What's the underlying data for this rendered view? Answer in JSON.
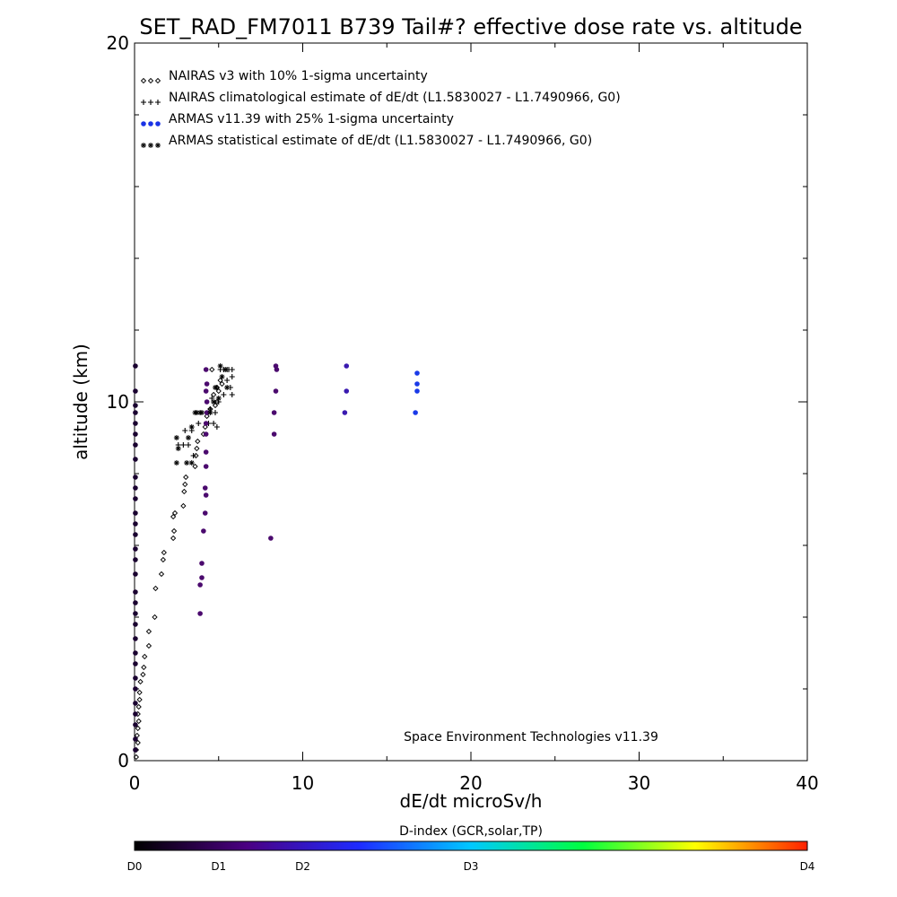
{
  "chart_data": {
    "type": "scatter",
    "title": "SET_RAD_FM7011  B739 Tail#? effective dose rate vs. altitude",
    "xlabel": "dE/dt microSv/h",
    "ylabel": "altitude (km)",
    "xlim": [
      0,
      40
    ],
    "ylim": [
      0,
      20
    ],
    "x_ticks": [
      0,
      10,
      20,
      30,
      40
    ],
    "y_ticks": [
      0,
      10,
      20
    ],
    "x_tick_labels": [
      "0",
      "10",
      "20",
      "30",
      "40"
    ],
    "y_tick_labels": [
      "0",
      "10",
      "20"
    ],
    "legend_position": "top-left",
    "annotation": "Space Environment Technologies v11.39",
    "series": [
      {
        "name": "NAIRAS v3 with 10% 1-sigma uncertainty",
        "symbol": "diamond",
        "legend_symbol": "◇◇◇",
        "color": "#000000",
        "points": [
          [
            0.1,
            0.1
          ],
          [
            0.1,
            0.3
          ],
          [
            0.2,
            0.5
          ],
          [
            0.15,
            0.7
          ],
          [
            0.2,
            0.9
          ],
          [
            0.25,
            1.1
          ],
          [
            0.2,
            1.3
          ],
          [
            0.25,
            1.5
          ],
          [
            0.3,
            1.7
          ],
          [
            0.3,
            1.9
          ],
          [
            0.35,
            2.2
          ],
          [
            0.5,
            2.4
          ],
          [
            0.55,
            2.6
          ],
          [
            0.6,
            2.9
          ],
          [
            0.85,
            3.2
          ],
          [
            0.85,
            3.6
          ],
          [
            1.2,
            4.0
          ],
          [
            1.25,
            4.8
          ],
          [
            1.6,
            5.2
          ],
          [
            1.7,
            5.6
          ],
          [
            1.75,
            5.8
          ],
          [
            2.3,
            6.2
          ],
          [
            2.35,
            6.4
          ],
          [
            2.3,
            6.8
          ],
          [
            2.4,
            6.9
          ],
          [
            2.9,
            7.1
          ],
          [
            2.95,
            7.5
          ],
          [
            3.0,
            7.7
          ],
          [
            3.05,
            7.9
          ],
          [
            3.6,
            8.2
          ],
          [
            3.65,
            8.5
          ],
          [
            3.7,
            8.7
          ],
          [
            3.75,
            8.9
          ],
          [
            4.1,
            9.1
          ],
          [
            4.2,
            9.3
          ],
          [
            4.3,
            9.6
          ],
          [
            4.5,
            9.8
          ],
          [
            4.9,
            10.0
          ],
          [
            4.7,
            10.2
          ],
          [
            4.9,
            10.4
          ],
          [
            5.1,
            10.6
          ],
          [
            5.2,
            10.5
          ],
          [
            4.6,
            10.9
          ],
          [
            4.8,
            9.9
          ],
          [
            5.0,
            10.3
          ]
        ]
      },
      {
        "name": "NAIRAS climatological estimate of dE/dt (L1.5830027 - L1.7490966, G0)",
        "symbol": "plus",
        "legend_symbol": "+++",
        "color": "#000000",
        "points": [
          [
            2.6,
            8.8
          ],
          [
            2.9,
            8.8
          ],
          [
            3.2,
            8.8
          ],
          [
            3.0,
            9.2
          ],
          [
            3.4,
            9.2
          ],
          [
            3.5,
            8.5
          ],
          [
            3.8,
            9.4
          ],
          [
            4.7,
            9.4
          ],
          [
            4.5,
            9.8
          ],
          [
            4.9,
            9.3
          ],
          [
            4.8,
            9.7
          ],
          [
            5.0,
            10.0
          ],
          [
            5.3,
            10.2
          ],
          [
            4.9,
            10.4
          ],
          [
            5.5,
            10.6
          ],
          [
            5.7,
            10.4
          ],
          [
            5.8,
            10.2
          ],
          [
            5.5,
            10.9
          ],
          [
            5.1,
            10.9
          ],
          [
            5.3,
            10.9
          ],
          [
            5.6,
            10.9
          ],
          [
            5.8,
            10.9
          ],
          [
            5.8,
            10.7
          ],
          [
            4.6,
            10.1
          ],
          [
            4.4,
            9.4
          ]
        ]
      },
      {
        "name": "ARMAS v11.39 with 25% 1-sigma uncertainty",
        "symbol": "dot",
        "legend_symbol": "●●●",
        "color": "#1a33e6",
        "points": [
          [
            0.05,
            11.0
          ],
          [
            0.05,
            10.3
          ],
          [
            0.05,
            9.9
          ],
          [
            0.05,
            9.7
          ],
          [
            0.05,
            9.4
          ],
          [
            0.05,
            9.1
          ],
          [
            0.05,
            8.8
          ],
          [
            0.05,
            8.4
          ],
          [
            0.05,
            7.9
          ],
          [
            0.05,
            7.6
          ],
          [
            0.05,
            7.3
          ],
          [
            0.05,
            6.9
          ],
          [
            0.05,
            6.6
          ],
          [
            0.05,
            6.3
          ],
          [
            0.05,
            5.9
          ],
          [
            0.05,
            5.6
          ],
          [
            0.05,
            5.2
          ],
          [
            0.05,
            4.7
          ],
          [
            0.05,
            4.4
          ],
          [
            0.05,
            4.1
          ],
          [
            0.05,
            3.8
          ],
          [
            0.05,
            3.4
          ],
          [
            0.05,
            3.0
          ],
          [
            0.05,
            2.7
          ],
          [
            0.05,
            2.3
          ],
          [
            0.05,
            2.0
          ],
          [
            0.05,
            1.6
          ],
          [
            0.05,
            1.3
          ],
          [
            0.05,
            1.0
          ],
          [
            0.05,
            0.6
          ],
          [
            0.05,
            0.3
          ],
          [
            3.9,
            4.1
          ],
          [
            3.9,
            4.9
          ],
          [
            4.0,
            5.1
          ],
          [
            4.0,
            5.5
          ],
          [
            4.1,
            6.4
          ],
          [
            4.2,
            6.9
          ],
          [
            4.25,
            7.4
          ],
          [
            4.2,
            7.6
          ],
          [
            4.25,
            8.2
          ],
          [
            4.25,
            8.6
          ],
          [
            4.25,
            9.1
          ],
          [
            4.25,
            9.4
          ],
          [
            4.3,
            9.7
          ],
          [
            4.3,
            10.0
          ],
          [
            4.25,
            10.3
          ],
          [
            4.3,
            10.5
          ],
          [
            4.25,
            10.9
          ],
          [
            8.1,
            6.2
          ],
          [
            8.3,
            9.1
          ],
          [
            8.3,
            9.7
          ],
          [
            8.4,
            10.3
          ],
          [
            8.45,
            10.9
          ],
          [
            8.4,
            11.0
          ],
          [
            12.5,
            9.7
          ],
          [
            12.6,
            10.3
          ],
          [
            12.6,
            11.0
          ],
          [
            16.7,
            9.7
          ],
          [
            16.8,
            10.3
          ],
          [
            16.8,
            10.5
          ],
          [
            16.8,
            10.8
          ]
        ]
      },
      {
        "name": "ARMAS statistical estimate of dE/dt (L1.5830027 - L1.7490966, G0)",
        "symbol": "asterisk",
        "legend_symbol": "✳✳✳",
        "color": "#000000",
        "points": [
          [
            2.5,
            8.3
          ],
          [
            2.6,
            8.7
          ],
          [
            2.5,
            9.0
          ],
          [
            3.1,
            8.3
          ],
          [
            3.4,
            8.3
          ],
          [
            3.2,
            9.0
          ],
          [
            3.4,
            9.3
          ],
          [
            3.6,
            9.7
          ],
          [
            3.7,
            9.7
          ],
          [
            3.9,
            9.7
          ],
          [
            4.0,
            9.7
          ],
          [
            4.5,
            9.7
          ],
          [
            4.7,
            10.0
          ],
          [
            4.8,
            10.4
          ],
          [
            5.2,
            10.7
          ],
          [
            5.5,
            10.4
          ],
          [
            5.4,
            10.9
          ],
          [
            5.1,
            11.0
          ],
          [
            5.0,
            10.1
          ]
        ]
      }
    ],
    "color_bar": {
      "label": "D-index (GCR,solar,TP)",
      "tick_labels": [
        "D0",
        "D1",
        "D2",
        "D3",
        "D4"
      ],
      "tick_positions": [
        0,
        0.125,
        0.25,
        0.5,
        1.0
      ],
      "colors": [
        "#000000",
        "#4b0082",
        "#1e2bff",
        "#00c8ff",
        "#00ff40",
        "#ffff00",
        "#ff2000"
      ]
    }
  }
}
